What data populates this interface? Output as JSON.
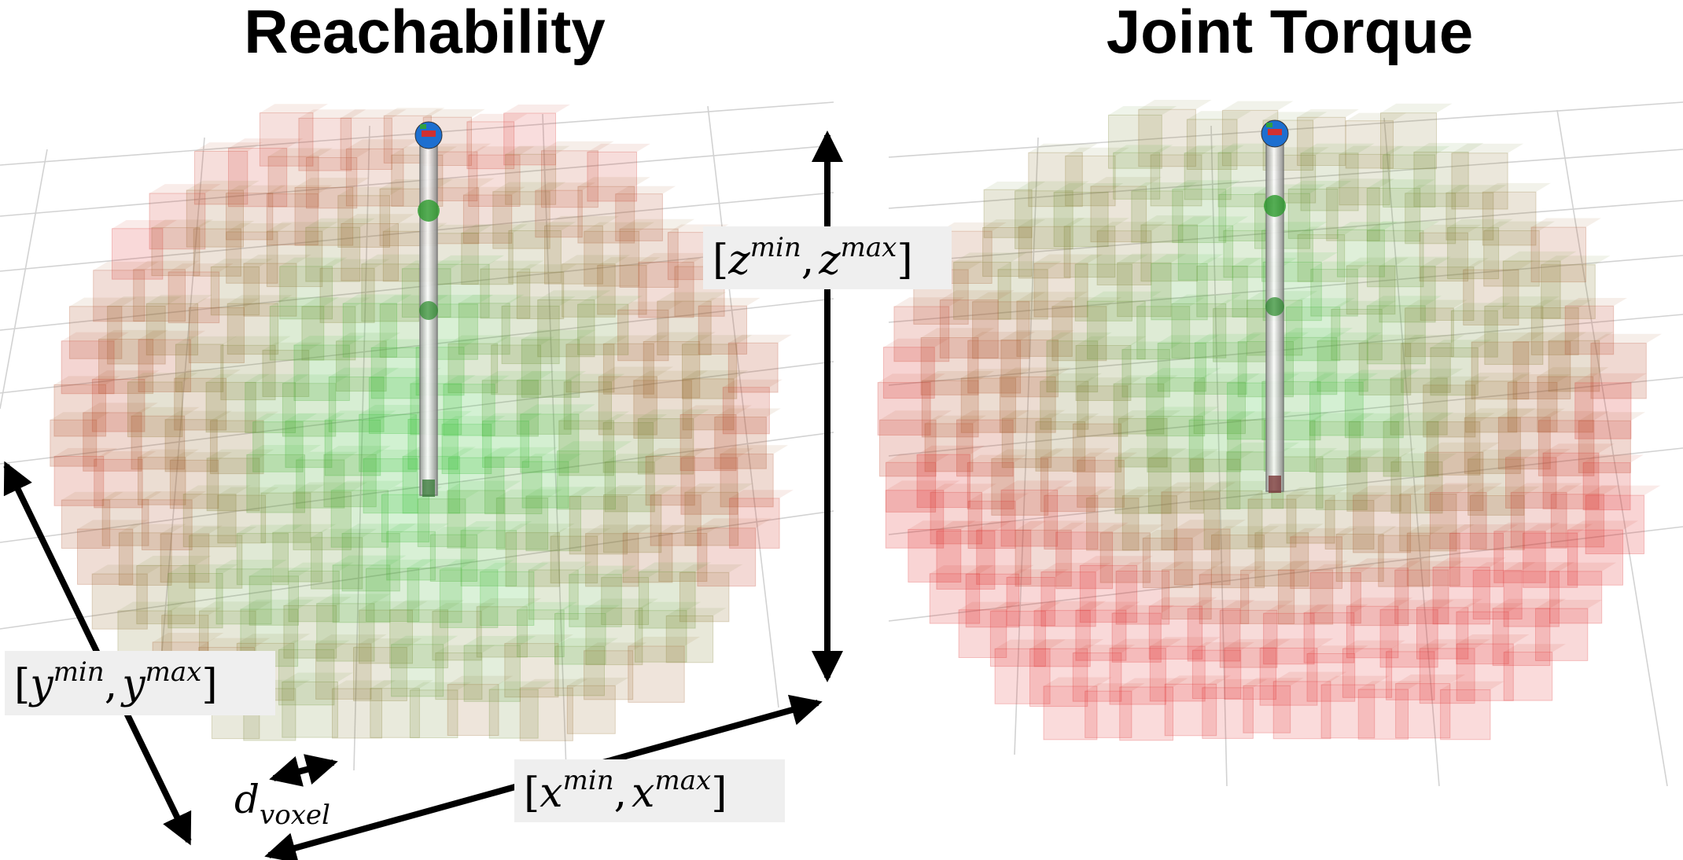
{
  "panels": [
    {
      "title": "Reachability",
      "metric": "reachability"
    },
    {
      "title": "Joint Torque",
      "metric": "joint-torque"
    }
  ],
  "annotations": {
    "z_range": {
      "open": "[",
      "base1": "z",
      "sup1": "min",
      "sep": ",",
      "base2": "z",
      "sup2": "max",
      "close": "]"
    },
    "y_range": {
      "open": "[",
      "base1": "y",
      "sup1": "min",
      "sep": ",",
      "base2": "y",
      "sup2": "max",
      "close": "]"
    },
    "x_range": {
      "open": "[",
      "base1": "x",
      "sup1": "min",
      "sep": ",",
      "base2": "x",
      "sup2": "max",
      "close": "]"
    },
    "voxel_size": {
      "base": "d",
      "sub": "voxel"
    }
  },
  "colors": {
    "high_value": "#2fbf2f",
    "low_value": "#e02a2a",
    "grid_line": "#cfcfcf",
    "label_box": "#efefef",
    "arrow": "#000000"
  }
}
